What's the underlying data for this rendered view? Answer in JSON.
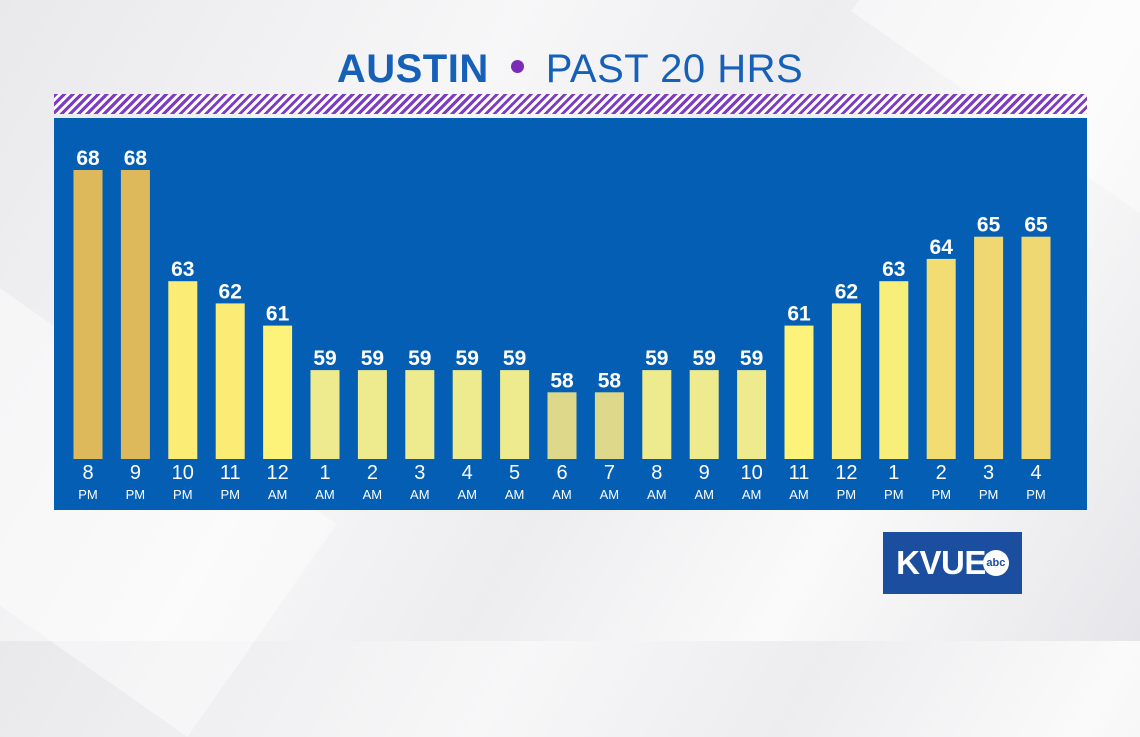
{
  "header": {
    "city": "AUSTIN",
    "subtitle": "PAST 20 HRS"
  },
  "logo": {
    "text": "KVUE",
    "network": "abc"
  },
  "colors": {
    "panel": "#045fb4",
    "title": "#1660b8",
    "dot": "#7a2bb8",
    "hatch": "#7e3bc4"
  },
  "chart_data": {
    "type": "bar",
    "categories": [
      {
        "hour": "8",
        "period": "PM"
      },
      {
        "hour": "9",
        "period": "PM"
      },
      {
        "hour": "10",
        "period": "PM"
      },
      {
        "hour": "11",
        "period": "PM"
      },
      {
        "hour": "12",
        "period": "AM"
      },
      {
        "hour": "1",
        "period": "AM"
      },
      {
        "hour": "2",
        "period": "AM"
      },
      {
        "hour": "3",
        "period": "AM"
      },
      {
        "hour": "4",
        "period": "AM"
      },
      {
        "hour": "5",
        "period": "AM"
      },
      {
        "hour": "6",
        "period": "AM"
      },
      {
        "hour": "7",
        "period": "AM"
      },
      {
        "hour": "8",
        "period": "AM"
      },
      {
        "hour": "9",
        "period": "AM"
      },
      {
        "hour": "10",
        "period": "AM"
      },
      {
        "hour": "11",
        "period": "AM"
      },
      {
        "hour": "12",
        "period": "PM"
      },
      {
        "hour": "1",
        "period": "PM"
      },
      {
        "hour": "2",
        "period": "PM"
      },
      {
        "hour": "3",
        "period": "PM"
      },
      {
        "hour": "4",
        "period": "PM"
      }
    ],
    "values": [
      68,
      68,
      63,
      62,
      61,
      59,
      59,
      59,
      59,
      59,
      58,
      58,
      59,
      59,
      59,
      61,
      62,
      63,
      64,
      65,
      65
    ],
    "value_labels": [
      "68",
      "68",
      "63",
      "62",
      "61",
      "59",
      "59",
      "59",
      "59",
      "59",
      "58",
      "58",
      "59",
      "59",
      "59",
      "61",
      "62",
      "63",
      "64",
      "65",
      "65"
    ],
    "colors": [
      "#deb95c",
      "#deb95c",
      "#fbec75",
      "#fbec75",
      "#fdf27a",
      "#eeeb8f",
      "#eeeb8f",
      "#eeeb8f",
      "#eeeb8f",
      "#eeeb8f",
      "#ded98a",
      "#ded98a",
      "#eeeb8f",
      "#eeeb8f",
      "#eeeb8f",
      "#fdf27a",
      "#f8ee7a",
      "#f8ee7a",
      "#f2dd72",
      "#efd871",
      "#efd871"
    ],
    "ylim": [
      55,
      68
    ],
    "grid": false,
    "legend": "none"
  }
}
